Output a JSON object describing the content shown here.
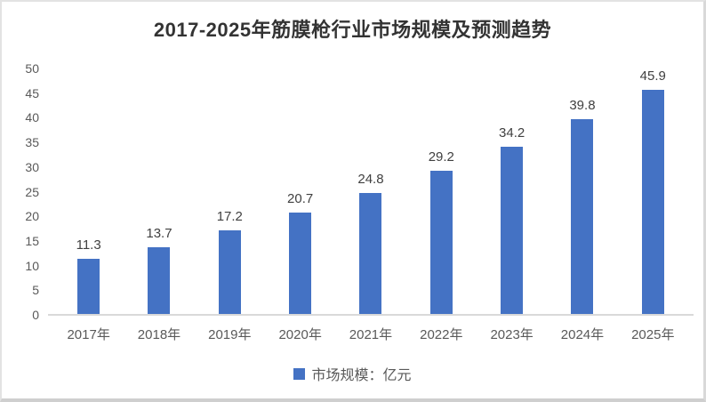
{
  "chart_data": {
    "type": "bar",
    "title": "2017-2025年筋膜枪行业市场规模及预测趋势",
    "categories": [
      "2017年",
      "2018年",
      "2019年",
      "2020年",
      "2021年",
      "2022年",
      "2023年",
      "2024年",
      "2025年"
    ],
    "series": [
      {
        "name": "市场规模：亿元",
        "values": [
          11.3,
          13.7,
          17.2,
          20.7,
          24.8,
          29.2,
          34.2,
          39.8,
          45.9
        ]
      }
    ],
    "xlabel": "",
    "ylabel": "",
    "ylim": [
      0,
      50
    ],
    "y_ticks": [
      0,
      5,
      10,
      15,
      20,
      25,
      30,
      35,
      40,
      45,
      50
    ],
    "grid": false,
    "data_labels_shown": true,
    "legend_position": "bottom"
  },
  "legend": {
    "swatch_color": "#4472C4",
    "label": "市场规模：亿元"
  },
  "colors": {
    "bar": "#4472C4",
    "title_text": "#333333",
    "axis_text": "#595959",
    "value_text": "#404040",
    "axis_line": "#D9D9D9",
    "frame_border": "#D9D9D9"
  }
}
